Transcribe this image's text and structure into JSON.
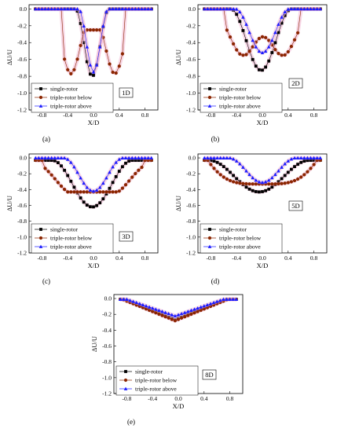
{
  "colors": {
    "single-rotor": "#000000",
    "triple-rotor below": "#8b2500",
    "triple-rotor above": "#1a1aff",
    "highlight": "#f3b8d4"
  },
  "chart_data": [
    {
      "type": "scatter",
      "panel": "(a)",
      "distance_label": "1D",
      "xlabel": "X/D",
      "ylabel": "ΔU/U",
      "xlim": [
        -1.0,
        1.0
      ],
      "ylim": [
        -1.2,
        0.05
      ],
      "xticks": [
        "-0.8",
        "-0.4",
        "0.0",
        "0.4",
        "0.8"
      ],
      "yticks": [
        "0.0",
        "-0.2",
        "-0.4",
        "-0.6",
        "-0.8",
        "-1.0",
        "-1.2"
      ],
      "legend_position": "bottom-left",
      "series": [
        {
          "name": "single-rotor",
          "marker": "square",
          "center": -0.02,
          "halfwidth": 0.26,
          "depth": -0.8,
          "edge": 0.0,
          "wobble": 0
        },
        {
          "name": "triple-rotor below",
          "marker": "circle",
          "center": 0.0,
          "halfwidth": 0.47,
          "depth": -0.77,
          "edge": 0.0,
          "wobble": 0,
          "bimodal": true,
          "lobes": [
            -0.35,
            0.33
          ],
          "lobe_width": 0.14,
          "mid_depth": -0.25
        },
        {
          "name": "triple-rotor above",
          "marker": "triangle",
          "center": 0.0,
          "halfwidth": 0.23,
          "depth": -0.75,
          "edge": 0.0,
          "wobble": 0
        }
      ]
    },
    {
      "type": "scatter",
      "panel": "(b)",
      "distance_label": "2D",
      "xlabel": "X/D",
      "ylabel": "ΔU/U",
      "xlim": [
        -1.0,
        1.0
      ],
      "ylim": [
        -1.2,
        0.05
      ],
      "xticks": [
        "-0.8",
        "-0.4",
        "0.0",
        "0.4",
        "0.8"
      ],
      "yticks": [
        "0.0",
        "-0.2",
        "-0.4",
        "-0.6",
        "-0.8",
        "-1.0",
        "-1.2"
      ],
      "legend_position": "bottom-left",
      "series": [
        {
          "name": "single-rotor",
          "marker": "square",
          "center": -0.02,
          "halfwidth": 0.47,
          "depth": -0.73,
          "edge": 0.0,
          "wobble": 0
        },
        {
          "name": "triple-rotor below",
          "marker": "circle",
          "center": 0.0,
          "halfwidth": 0.55,
          "depth": -0.55,
          "edge": 0.0,
          "wobble": 0,
          "bimodal": true,
          "lobes": [
            -0.3,
            0.32
          ],
          "lobe_width": 0.2,
          "mid_depth": -0.27
        },
        {
          "name": "triple-rotor above",
          "marker": "triangle",
          "center": 0.0,
          "halfwidth": 0.42,
          "depth": -0.52,
          "edge": 0.0,
          "wobble": 0
        }
      ]
    },
    {
      "type": "scatter",
      "panel": "(c)",
      "distance_label": "3D",
      "xlabel": "X/D",
      "ylabel": "ΔU/U",
      "xlim": [
        -1.0,
        1.0
      ],
      "ylim": [
        -1.2,
        0.05
      ],
      "xticks": [
        "-0.8",
        "-0.4",
        "0.0",
        "0.4",
        "0.8"
      ],
      "yticks": [
        "0.0",
        "-0.2",
        "-0.4",
        "-0.6",
        "-0.8",
        "-1.0",
        "-1.2"
      ],
      "legend_position": "bottom-left",
      "series": [
        {
          "name": "single-rotor",
          "marker": "square",
          "center": -0.02,
          "halfwidth": 0.62,
          "depth": -0.62,
          "edge": -0.03,
          "wobble": 0
        },
        {
          "name": "triple-rotor below",
          "marker": "circle",
          "center": 0.0,
          "halfwidth": 0.78,
          "depth": -0.43,
          "edge": -0.03,
          "wobble": 0,
          "bimodal": true,
          "lobes": [
            -0.32,
            0.3
          ],
          "lobe_width": 0.28,
          "mid_depth": -0.3
        },
        {
          "name": "triple-rotor above",
          "marker": "triangle",
          "center": 0.0,
          "halfwidth": 0.46,
          "depth": -0.42,
          "edge": 0.0,
          "wobble": 0
        }
      ]
    },
    {
      "type": "scatter",
      "panel": "(d)",
      "distance_label": "5D",
      "xlabel": "X/D",
      "ylabel": "ΔU/U",
      "xlim": [
        -1.0,
        1.0
      ],
      "ylim": [
        -1.2,
        0.05
      ],
      "xticks": [
        "-0.8",
        "-0.4",
        "0.0",
        "0.4",
        "0.8"
      ],
      "yticks": [
        "0.0",
        "-0.2",
        "-0.4",
        "-0.6",
        "-0.8",
        "-1.0",
        "-1.2"
      ],
      "legend_position": "bottom-left",
      "series": [
        {
          "name": "single-rotor",
          "marker": "square",
          "center": -0.05,
          "halfwidth": 0.78,
          "depth": -0.43,
          "edge": -0.03,
          "wobble": 0
        },
        {
          "name": "triple-rotor below",
          "marker": "circle",
          "center": 0.0,
          "halfwidth": 0.85,
          "depth": -0.33,
          "edge": -0.03,
          "wobble": 0,
          "flat": true
        },
        {
          "name": "triple-rotor above",
          "marker": "triangle",
          "center": 0.0,
          "halfwidth": 0.52,
          "depth": -0.31,
          "edge": 0.0,
          "wobble": 0
        }
      ]
    },
    {
      "type": "scatter",
      "panel": "(e)",
      "distance_label": "8D",
      "xlabel": "X/D",
      "ylabel": "ΔU/U",
      "xlim": [
        -1.0,
        1.0
      ],
      "ylim": [
        -1.2,
        0.05
      ],
      "xticks": [
        "-0.8",
        "-0.4",
        "0.0",
        "0.4",
        "0.8"
      ],
      "yticks": [
        "0.0",
        "-0.2",
        "-0.4",
        "-0.6",
        "-0.8",
        "-1.0",
        "-1.2"
      ],
      "legend_position": "bottom-left",
      "series": [
        {
          "name": "single-rotor",
          "marker": "square",
          "center": -0.05,
          "halfwidth": 0.8,
          "depth": -0.27,
          "edge": -0.01,
          "wobble": 0,
          "vshape": true
        },
        {
          "name": "triple-rotor below",
          "marker": "circle",
          "center": -0.05,
          "halfwidth": 0.82,
          "depth": -0.28,
          "edge": -0.01,
          "wobble": 0,
          "vshape": true
        },
        {
          "name": "triple-rotor above",
          "marker": "triangle",
          "center": -0.05,
          "halfwidth": 0.75,
          "depth": -0.22,
          "edge": -0.01,
          "wobble": 0,
          "vshape": true
        }
      ]
    }
  ]
}
